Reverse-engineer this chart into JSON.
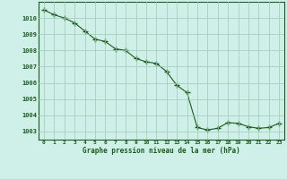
{
  "x": [
    0,
    1,
    2,
    3,
    4,
    5,
    6,
    7,
    8,
    9,
    10,
    11,
    12,
    13,
    14,
    15,
    16,
    17,
    18,
    19,
    20,
    21,
    22,
    23
  ],
  "y": [
    1010.5,
    1010.2,
    1010.0,
    1009.7,
    1009.2,
    1008.7,
    1008.55,
    1008.1,
    1008.0,
    1007.5,
    1007.3,
    1007.2,
    1006.7,
    1005.85,
    1005.4,
    1003.25,
    1003.1,
    1003.2,
    1003.55,
    1003.5,
    1003.3,
    1003.2,
    1003.25,
    1003.5
  ],
  "line_color": "#1a5c1a",
  "marker_color": "#1a5c1a",
  "bg_color": "#cff0e8",
  "grid_color": "#a0c8b8",
  "label_color": "#1a5c1a",
  "xlabel": "Graphe pression niveau de la mer (hPa)",
  "ylim": [
    1002.5,
    1011.0
  ],
  "xlim": [
    -0.5,
    23.5
  ],
  "yticks": [
    1003,
    1004,
    1005,
    1006,
    1007,
    1008,
    1009,
    1010
  ],
  "xticks": [
    0,
    1,
    2,
    3,
    4,
    5,
    6,
    7,
    8,
    9,
    10,
    11,
    12,
    13,
    14,
    15,
    16,
    17,
    18,
    19,
    20,
    21,
    22,
    23
  ],
  "xtick_labels": [
    "0",
    "1",
    "2",
    "3",
    "4",
    "5",
    "6",
    "7",
    "8",
    "9",
    "10",
    "11",
    "12",
    "13",
    "14",
    "15",
    "16",
    "17",
    "18",
    "19",
    "20",
    "21",
    "22",
    "23"
  ]
}
